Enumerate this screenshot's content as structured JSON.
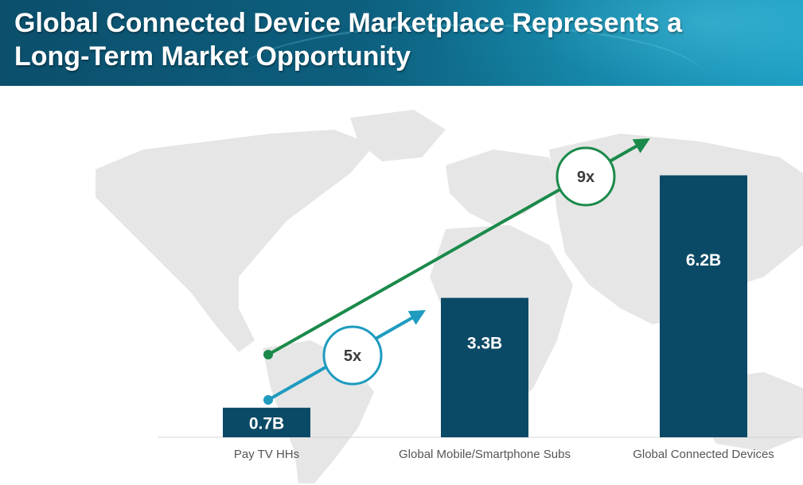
{
  "header": {
    "title_line1": "Global Connected Device Marketplace Represents a",
    "title_line2": "Long-Term Market Opportunity"
  },
  "colors": {
    "bar": "#0b4a66",
    "green_arrow": "#1a8a4a",
    "blue_arrow": "#1e9bbf",
    "map": "#e6e6e6"
  },
  "chart_data": {
    "type": "bar",
    "categories": [
      "Pay TV HHs",
      "Global Mobile/Smartphone Subs",
      "Global Connected Devices"
    ],
    "values": [
      0.7,
      3.3,
      6.2
    ],
    "value_labels": [
      "0.7B",
      "3.3B",
      "6.2B"
    ],
    "ylim": [
      0,
      7
    ],
    "grid": false,
    "annotations": [
      {
        "label": "5x",
        "from": "Pay TV HHs",
        "to": "Global Mobile/Smartphone Subs",
        "color": "blue"
      },
      {
        "label": "9x",
        "from": "Pay TV HHs",
        "to": "Global Connected Devices",
        "color": "green"
      }
    ]
  }
}
